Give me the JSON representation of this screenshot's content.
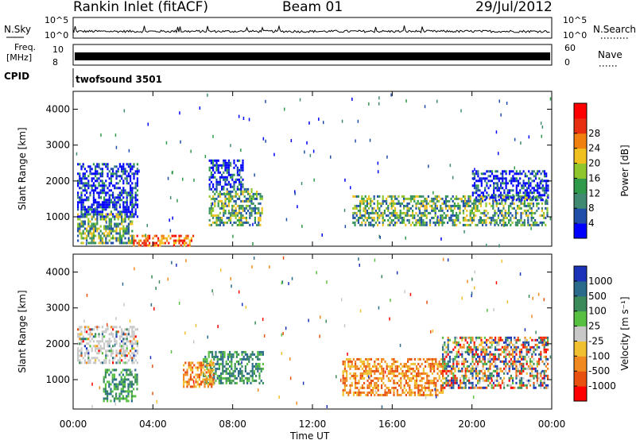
{
  "header": {
    "station": "Rankin Inlet (fitACF)",
    "beam": "Beam 01",
    "date": "29/Jul/2012"
  },
  "side_labels": {
    "nsky": "N.Sky",
    "nsearch": "N.Search",
    "freq_top": "Freq.",
    "freq_unit": "[MHz]",
    "nave": "Nave",
    "cpid": "CPID",
    "cpid_value": "twofsound 3501",
    "nsky_ticks": [
      "10^5",
      "10^0"
    ],
    "nsearch_ticks": [
      "10^5",
      "10^0"
    ],
    "freq_ticks": [
      "10",
      "8"
    ],
    "nave_ticks": [
      "60",
      "0"
    ]
  },
  "chart_data": [
    {
      "type": "heatmap",
      "name": "power",
      "ylabel": "Slant Range [km]",
      "xlabel": "",
      "x_ticks": [
        "00:00",
        "04:00",
        "08:00",
        "12:00",
        "16:00",
        "20:00",
        "00:00"
      ],
      "xlim_hours": [
        0,
        24
      ],
      "y_ticks": [
        1000,
        2000,
        3000,
        4000
      ],
      "ylim": [
        180,
        4500
      ],
      "colorbar": {
        "label": "Power [dB]",
        "ticks": [
          "4",
          "8",
          "12",
          "16",
          "20",
          "24",
          "28"
        ],
        "colors": [
          "#0000ff",
          "#1f4fa8",
          "#3f8a70",
          "#2e9a4a",
          "#8fc62c",
          "#f0c020",
          "#f08010",
          "#e83010",
          "#ff0000"
        ]
      },
      "regions": [
        {
          "x0": 0.2,
          "x1": 3.2,
          "y0": 1000,
          "y1": 2500,
          "level": "low"
        },
        {
          "x0": 0.2,
          "x1": 3.0,
          "y0": 300,
          "y1": 1100,
          "level": "mid"
        },
        {
          "x0": 3.0,
          "x1": 6.0,
          "y0": 180,
          "y1": 500,
          "level": "high"
        },
        {
          "x0": 6.8,
          "x1": 9.5,
          "y0": 800,
          "y1": 1800,
          "level": "mid"
        },
        {
          "x0": 6.8,
          "x1": 8.5,
          "y0": 1800,
          "y1": 2600,
          "level": "low"
        },
        {
          "x0": 14.0,
          "x1": 23.8,
          "y0": 800,
          "y1": 1600,
          "level": "mid"
        },
        {
          "x0": 20.0,
          "x1": 23.8,
          "y0": 1500,
          "y1": 2300,
          "level": "low"
        }
      ]
    },
    {
      "type": "heatmap",
      "name": "velocity",
      "ylabel": "Slant Range [km]",
      "xlabel": "Time UT",
      "x_ticks": [
        "00:00",
        "04:00",
        "08:00",
        "12:00",
        "16:00",
        "20:00",
        "00:00"
      ],
      "xlim_hours": [
        0,
        24
      ],
      "y_ticks": [
        1000,
        2000,
        3000,
        4000
      ],
      "ylim": [
        180,
        4500
      ],
      "colorbar": {
        "label": "Velocity [m s⁻¹]",
        "ticks": [
          "1000",
          "500",
          "100",
          "25",
          "-25",
          "-100",
          "-500",
          "-1000"
        ],
        "colors": [
          "#1a33b8",
          "#2a6a8a",
          "#3a8a5a",
          "#58c040",
          "#c8c8c8",
          "#f0c030",
          "#f08a20",
          "#e85010",
          "#ff0000"
        ]
      },
      "regions": [
        {
          "x0": 0.2,
          "x1": 3.2,
          "y0": 1500,
          "y1": 2500,
          "level": "gray"
        },
        {
          "x0": 1.5,
          "x1": 3.2,
          "y0": 400,
          "y1": 1300,
          "level": "green"
        },
        {
          "x0": 6.5,
          "x1": 9.5,
          "y0": 900,
          "y1": 1800,
          "level": "green"
        },
        {
          "x0": 5.5,
          "x1": 7.0,
          "y0": 800,
          "y1": 1500,
          "level": "orange"
        },
        {
          "x0": 13.5,
          "x1": 18.5,
          "y0": 600,
          "y1": 1600,
          "level": "orange"
        },
        {
          "x0": 18.5,
          "x1": 23.8,
          "y0": 800,
          "y1": 2200,
          "level": "mixed"
        }
      ]
    }
  ]
}
